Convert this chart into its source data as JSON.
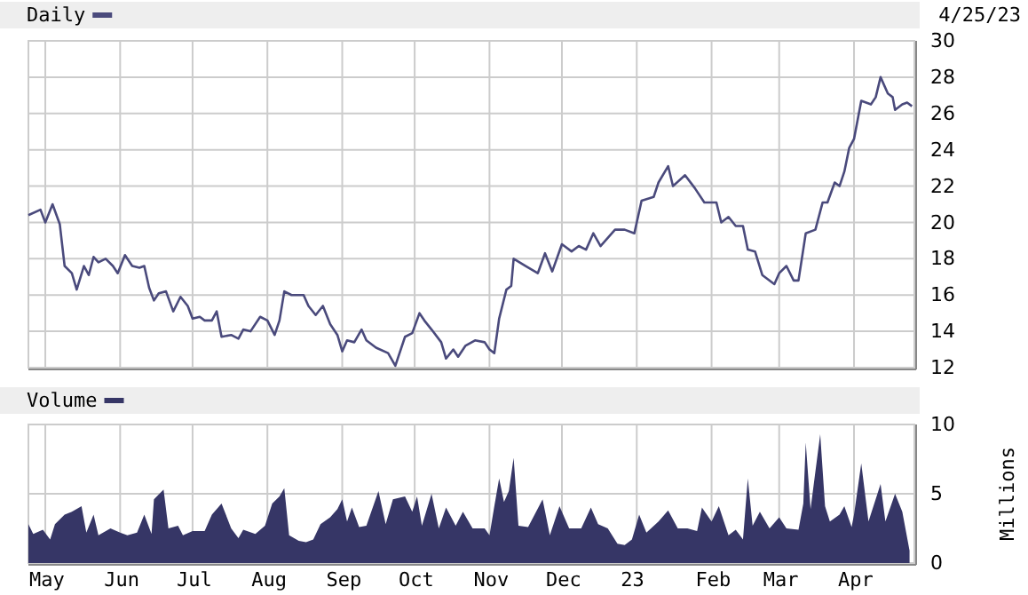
{
  "chart_data": [
    {
      "type": "line",
      "annotations": [
        "4/25/23"
      ],
      "legend": "top left",
      "grid": true,
      "tick_labels": "y",
      "line_style": "solid",
      "xlim": [
        "2022-04-24",
        "2023-04-26"
      ],
      "xticks": [
        {
          "value": "2022-05-01",
          "label": null
        },
        {
          "value": "2022-06-01",
          "label": null
        },
        {
          "value": "2022-07-01",
          "label": null
        },
        {
          "value": "2022-08-01",
          "label": null
        },
        {
          "value": "2022-09-01",
          "label": null
        },
        {
          "value": "2022-10-01",
          "label": null
        },
        {
          "value": "2022-11-01",
          "label": null
        },
        {
          "value": "2022-12-01",
          "label": null
        },
        {
          "value": "2023-01-01",
          "label": null
        },
        {
          "value": "2023-02-01",
          "label": null
        },
        {
          "value": "2023-03-01",
          "label": null
        },
        {
          "value": "2023-04-01",
          "label": null
        }
      ],
      "ylim": [
        12,
        30
      ],
      "yticks": [
        12,
        14,
        16,
        18,
        20,
        22,
        24,
        26,
        28,
        30
      ],
      "series": [
        {
          "name": "Daily",
          "color": "#4a4a7c",
          "x": [
            "2022-04-24",
            "2022-04-29",
            "2022-05-01",
            "2022-05-04",
            "2022-05-07",
            "2022-05-09",
            "2022-05-12",
            "2022-05-14",
            "2022-05-17",
            "2022-05-19",
            "2022-05-21",
            "2022-05-23",
            "2022-05-26",
            "2022-05-29",
            "2022-05-31",
            "2022-06-03",
            "2022-06-06",
            "2022-06-09",
            "2022-06-11",
            "2022-06-13",
            "2022-06-15",
            "2022-06-17",
            "2022-06-20",
            "2022-06-23",
            "2022-06-26",
            "2022-06-29",
            "2022-07-01",
            "2022-07-04",
            "2022-07-06",
            "2022-07-09",
            "2022-07-11",
            "2022-07-13",
            "2022-07-17",
            "2022-07-20",
            "2022-07-22",
            "2022-07-25",
            "2022-07-29",
            "2022-08-01",
            "2022-08-04",
            "2022-08-06",
            "2022-08-08",
            "2022-08-11",
            "2022-08-14",
            "2022-08-16",
            "2022-08-18",
            "2022-08-21",
            "2022-08-24",
            "2022-08-27",
            "2022-08-30",
            "2022-09-01",
            "2022-09-03",
            "2022-09-06",
            "2022-09-09",
            "2022-09-11",
            "2022-09-15",
            "2022-09-20",
            "2022-09-23",
            "2022-09-27",
            "2022-09-30",
            "2022-10-03",
            "2022-10-05",
            "2022-10-08",
            "2022-10-12",
            "2022-10-14",
            "2022-10-17",
            "2022-10-19",
            "2022-10-22",
            "2022-10-26",
            "2022-10-30",
            "2022-11-01",
            "2022-11-03",
            "2022-11-05",
            "2022-11-08",
            "2022-11-10",
            "2022-11-11",
            "2022-11-16",
            "2022-11-21",
            "2022-11-24",
            "2022-11-27",
            "2022-12-01",
            "2022-12-05",
            "2022-12-08",
            "2022-12-11",
            "2022-12-14",
            "2022-12-17",
            "2022-12-23",
            "2022-12-27",
            "2022-12-31",
            "2023-01-03",
            "2023-01-08",
            "2023-01-10",
            "2023-01-14",
            "2023-01-16",
            "2023-01-21",
            "2023-01-25",
            "2023-01-29",
            "2023-02-03",
            "2023-02-05",
            "2023-02-08",
            "2023-02-11",
            "2023-02-14",
            "2023-02-16",
            "2023-02-19",
            "2023-02-22",
            "2023-02-27",
            "2023-03-01",
            "2023-03-04",
            "2023-03-07",
            "2023-03-09",
            "2023-03-12",
            "2023-03-16",
            "2023-03-19",
            "2023-03-21",
            "2023-03-24",
            "2023-03-26",
            "2023-03-28",
            "2023-03-30",
            "2023-04-01",
            "2023-04-04",
            "2023-04-08",
            "2023-04-10",
            "2023-04-12",
            "2023-04-15",
            "2023-04-17",
            "2023-04-18",
            "2023-04-21",
            "2023-04-23",
            "2023-04-25"
          ],
          "values": [
            20.4,
            20.7,
            20.0,
            21.0,
            19.9,
            17.6,
            17.2,
            16.3,
            17.6,
            17.1,
            18.1,
            17.8,
            18.0,
            17.6,
            17.2,
            18.2,
            17.6,
            17.5,
            17.6,
            16.4,
            15.7,
            16.1,
            16.2,
            15.1,
            15.9,
            15.4,
            14.7,
            14.8,
            14.6,
            14.6,
            15.1,
            13.7,
            13.8,
            13.6,
            14.1,
            14.0,
            14.8,
            14.6,
            13.8,
            14.6,
            16.2,
            16.0,
            16.0,
            16.0,
            15.4,
            14.9,
            15.4,
            14.4,
            13.8,
            12.9,
            13.5,
            13.4,
            14.1,
            13.5,
            13.1,
            12.8,
            12.1,
            13.7,
            13.9,
            15.0,
            14.6,
            14.1,
            13.4,
            12.5,
            13.0,
            12.6,
            13.2,
            13.5,
            13.4,
            13.0,
            12.8,
            14.7,
            16.3,
            16.5,
            18.0,
            17.6,
            17.2,
            18.3,
            17.3,
            18.8,
            18.4,
            18.7,
            18.5,
            19.4,
            18.7,
            19.6,
            19.6,
            19.4,
            21.2,
            21.4,
            22.2,
            23.1,
            22.0,
            22.6,
            21.9,
            21.1,
            21.1,
            20.0,
            20.3,
            19.8,
            19.8,
            18.5,
            18.4,
            17.1,
            16.6,
            17.2,
            17.6,
            16.8,
            16.8,
            19.4,
            19.6,
            21.1,
            21.1,
            22.2,
            22.0,
            22.8,
            24.1,
            24.6,
            26.7,
            26.5,
            26.9,
            28.0,
            27.1,
            26.9,
            26.2,
            26.5,
            26.6,
            26.4
          ]
        }
      ]
    },
    {
      "type": "area",
      "ylabel": "Millions",
      "legend": "top left",
      "grid": true,
      "xlim": [
        "2022-04-24",
        "2023-04-26"
      ],
      "xticks": [
        {
          "value": "2022-05-01",
          "label": "May"
        },
        {
          "value": "2022-06-01",
          "label": "Jun"
        },
        {
          "value": "2022-07-01",
          "label": "Jul"
        },
        {
          "value": "2022-08-01",
          "label": "Aug"
        },
        {
          "value": "2022-09-01",
          "label": "Sep"
        },
        {
          "value": "2022-10-01",
          "label": "Oct"
        },
        {
          "value": "2022-11-01",
          "label": "Nov"
        },
        {
          "value": "2022-12-01",
          "label": "Dec"
        },
        {
          "value": "2023-01-01",
          "label": "23"
        },
        {
          "value": "2023-02-01",
          "label": "Feb"
        },
        {
          "value": "2023-03-01",
          "label": "Mar"
        },
        {
          "value": "2023-04-01",
          "label": "Apr"
        }
      ],
      "ylim": [
        0,
        10
      ],
      "yticks": [
        0,
        5,
        10
      ],
      "series": [
        {
          "name": "Volume",
          "color": "#363666",
          "x": [
            "2022-04-24",
            "2022-04-26",
            "2022-04-30",
            "2022-05-03",
            "2022-05-05",
            "2022-05-09",
            "2022-05-12",
            "2022-05-16",
            "2022-05-18",
            "2022-05-21",
            "2022-05-23",
            "2022-05-28",
            "2022-06-01",
            "2022-06-04",
            "2022-06-08",
            "2022-06-11",
            "2022-06-14",
            "2022-06-15",
            "2022-06-19",
            "2022-06-21",
            "2022-06-25",
            "2022-06-27",
            "2022-07-01",
            "2022-07-06",
            "2022-07-09",
            "2022-07-13",
            "2022-07-17",
            "2022-07-20",
            "2022-07-22",
            "2022-07-27",
            "2022-07-31",
            "2022-08-03",
            "2022-08-06",
            "2022-08-08",
            "2022-08-10",
            "2022-08-14",
            "2022-08-17",
            "2022-08-20",
            "2022-08-23",
            "2022-08-27",
            "2022-08-30",
            "2022-09-01",
            "2022-09-03",
            "2022-09-05",
            "2022-09-08",
            "2022-09-11",
            "2022-09-16",
            "2022-09-19",
            "2022-09-22",
            "2022-09-27",
            "2022-09-30",
            "2022-10-02",
            "2022-10-04",
            "2022-10-08",
            "2022-10-11",
            "2022-10-14",
            "2022-10-18",
            "2022-10-21",
            "2022-10-25",
            "2022-10-30",
            "2022-11-01",
            "2022-11-03",
            "2022-11-05",
            "2022-11-07",
            "2022-11-09",
            "2022-11-11",
            "2022-11-13",
            "2022-11-17",
            "2022-11-23",
            "2022-11-26",
            "2022-11-30",
            "2022-12-04",
            "2022-12-09",
            "2022-12-13",
            "2022-12-16",
            "2022-12-20",
            "2022-12-24",
            "2022-12-27",
            "2022-12-30",
            "2023-01-02",
            "2023-01-05",
            "2023-01-10",
            "2023-01-14",
            "2023-01-18",
            "2023-01-22",
            "2023-01-26",
            "2023-01-28",
            "2023-02-01",
            "2023-02-04",
            "2023-02-08",
            "2023-02-11",
            "2023-02-14",
            "2023-02-16",
            "2023-02-18",
            "2023-02-21",
            "2023-02-25",
            "2023-03-01",
            "2023-03-04",
            "2023-03-09",
            "2023-03-11",
            "2023-03-12",
            "2023-03-14",
            "2023-03-18",
            "2023-03-20",
            "2023-03-22",
            "2023-03-26",
            "2023-03-28",
            "2023-03-31",
            "2023-04-01",
            "2023-04-04",
            "2023-04-07",
            "2023-04-12",
            "2023-04-14",
            "2023-04-18",
            "2023-04-21",
            "2023-04-24"
          ],
          "values": [
            2.8,
            2.1,
            2.4,
            1.7,
            2.8,
            3.5,
            3.7,
            4.1,
            2.2,
            3.5,
            2.0,
            2.5,
            2.2,
            2.0,
            2.2,
            3.5,
            2.1,
            4.6,
            5.3,
            2.5,
            2.7,
            2.0,
            2.3,
            2.3,
            3.5,
            4.3,
            2.5,
            1.8,
            2.4,
            2.1,
            2.7,
            4.3,
            4.8,
            5.4,
            2.0,
            1.6,
            1.5,
            1.7,
            2.8,
            3.3,
            3.9,
            4.6,
            3.0,
            4.0,
            2.6,
            2.7,
            5.2,
            2.8,
            4.6,
            4.8,
            3.7,
            4.8,
            2.7,
            5.0,
            2.5,
            4.0,
            2.7,
            3.7,
            2.5,
            2.5,
            2.0,
            4.1,
            6.1,
            4.4,
            5.2,
            7.6,
            2.7,
            2.6,
            4.6,
            2.0,
            4.1,
            2.5,
            2.5,
            4.0,
            2.8,
            2.5,
            1.4,
            1.3,
            1.7,
            3.5,
            2.2,
            3.0,
            3.8,
            2.5,
            2.5,
            2.3,
            4.0,
            3.0,
            4.1,
            2.0,
            2.4,
            1.7,
            6.1,
            2.7,
            3.7,
            2.5,
            3.3,
            2.5,
            2.4,
            4.3,
            8.7,
            3.9,
            9.3,
            4.1,
            3.0,
            3.5,
            4.1,
            2.6,
            3.5,
            7.2,
            3.0,
            5.7,
            3.0,
            5.0,
            3.7,
            0.9
          ]
        }
      ]
    }
  ]
}
